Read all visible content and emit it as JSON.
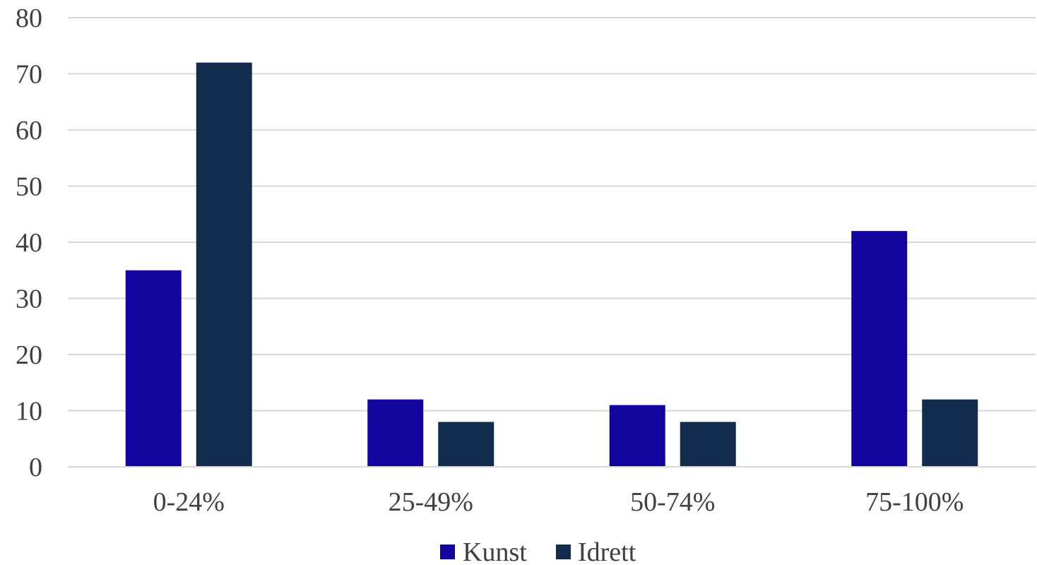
{
  "chart_data": {
    "type": "bar",
    "categories": [
      "0-24%",
      "25-49%",
      "50-74%",
      "75-100%"
    ],
    "series": [
      {
        "name": "Kunst",
        "values": [
          35,
          12,
          11,
          42
        ],
        "color": "#12059e"
      },
      {
        "name": "Idrett",
        "values": [
          72,
          8,
          8,
          12
        ],
        "color": "#132b4d"
      }
    ],
    "ylim": [
      0,
      80
    ],
    "yticks": [
      0,
      10,
      20,
      30,
      40,
      50,
      60,
      70,
      80
    ],
    "grid": true,
    "legend_position": "bottom",
    "title": "",
    "xlabel": "",
    "ylabel": ""
  }
}
